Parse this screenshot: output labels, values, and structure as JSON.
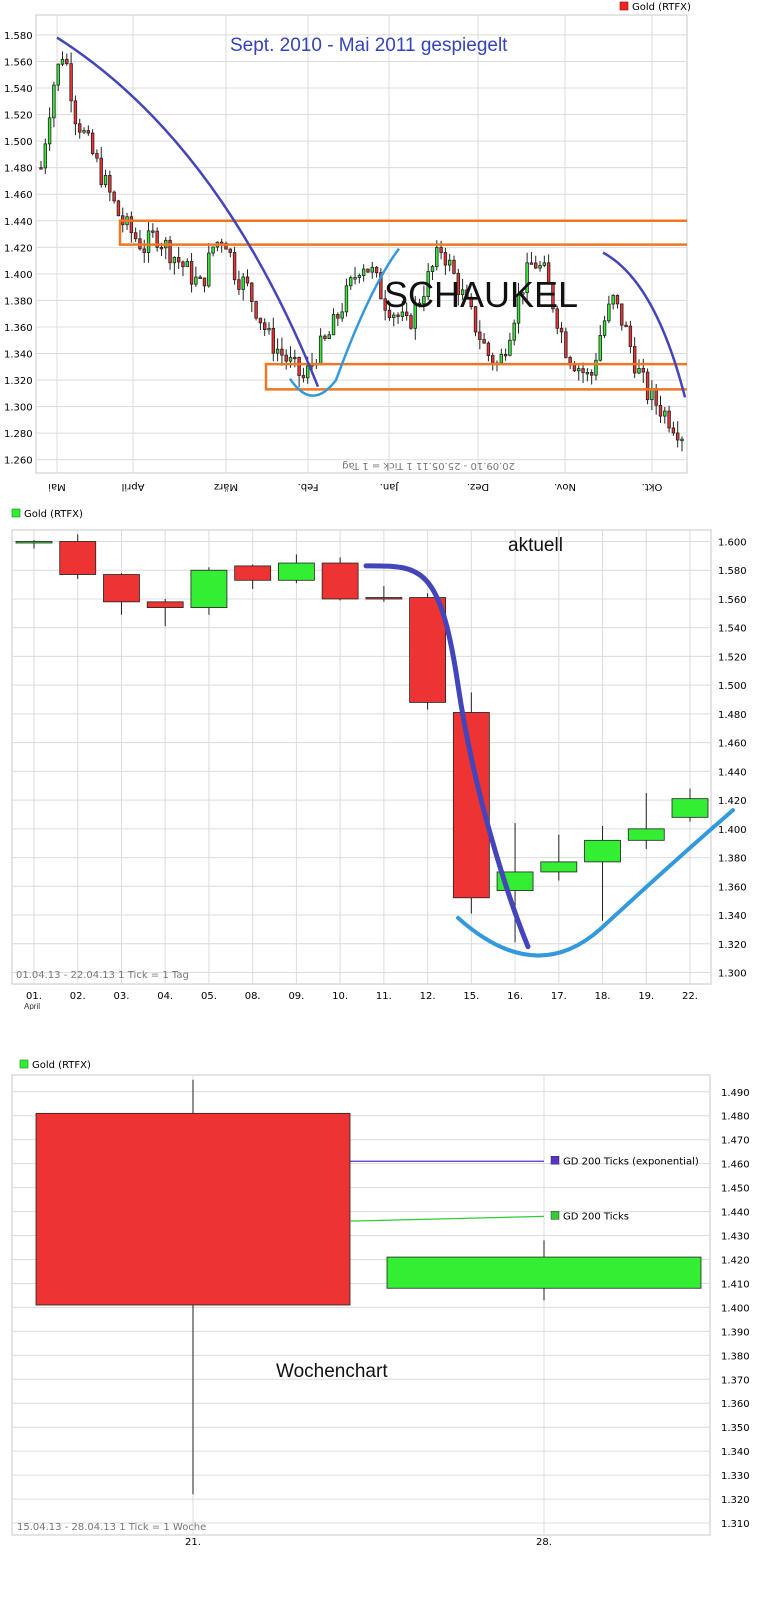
{
  "chart_data": [
    {
      "type": "candlestick",
      "title": "Sept. 2010 - Mai 2011 gespiegelt",
      "annotation": "SCHAUKEL",
      "legend": "Gold (RTFX)",
      "legend_color": "#ee2222",
      "info": "20.09.10 - 25.05.11   1 Tick = 1 Tag",
      "x_labels": [
        "Mai",
        "April",
        "März",
        "Feb.",
        "Jan.",
        "Dez.",
        "Nov.",
        "Okt."
      ],
      "x_labels_mirrored": true,
      "y_ticks": [
        1260,
        1280,
        1300,
        1320,
        1340,
        1360,
        1380,
        1400,
        1420,
        1440,
        1460,
        1480,
        1500,
        1520,
        1540,
        1560,
        1580
      ],
      "y_tick_labels": [
        "1.260",
        "1.280",
        "1.300",
        "1.320",
        "1.340",
        "1.360",
        "1.380",
        "1.400",
        "1.420",
        "1.440",
        "1.460",
        "1.480",
        "1.500",
        "1.520",
        "1.540",
        "1.560",
        "1.580"
      ],
      "ylim": [
        1250,
        1595
      ],
      "approx_close_path": [
        1480,
        1540,
        1570,
        1520,
        1500,
        1480,
        1460,
        1440,
        1430,
        1420,
        1430,
        1420,
        1410,
        1400,
        1390,
        1420,
        1430,
        1400,
        1390,
        1370,
        1350,
        1340,
        1330,
        1320,
        1340,
        1350,
        1370,
        1390,
        1410,
        1400,
        1380,
        1370,
        1360,
        1380,
        1400,
        1420,
        1400,
        1380,
        1360,
        1340,
        1330,
        1360,
        1390,
        1410,
        1400,
        1370,
        1340,
        1330,
        1320,
        1360,
        1380,
        1360,
        1330,
        1310,
        1300,
        1290,
        1280
      ],
      "resistance_zone": [
        1422,
        1440
      ],
      "support_zone": [
        1313,
        1332
      ],
      "colors": {
        "up": "#33ee33",
        "down": "#ee3333",
        "zone": "#ee7722",
        "curve_dark": "#4444bb",
        "curve_light": "#3399dd",
        "title": "#3344bb"
      }
    },
    {
      "type": "candlestick",
      "annotation": "aktuell",
      "legend": "Gold (RTFX)",
      "legend_color": "#33ee33",
      "info": "01.04.13 - 22.04.13   1 Tick = 1 Tag",
      "categories": [
        "01.",
        "02.",
        "03.",
        "04.",
        "05.",
        "08.",
        "09.",
        "10.",
        "11.",
        "12.",
        "15.",
        "16.",
        "17.",
        "18.",
        "19.",
        "22."
      ],
      "first_category_sub": "April",
      "y_ticks": [
        1300,
        1320,
        1340,
        1360,
        1380,
        1400,
        1420,
        1440,
        1460,
        1480,
        1500,
        1520,
        1540,
        1560,
        1580,
        1600
      ],
      "y_tick_labels": [
        "1.300",
        "1.320",
        "1.340",
        "1.360",
        "1.380",
        "1.400",
        "1.420",
        "1.440",
        "1.460",
        "1.480",
        "1.500",
        "1.520",
        "1.540",
        "1.560",
        "1.580",
        "1.600"
      ],
      "ylim": [
        1292,
        1608
      ],
      "ohlc": [
        {
          "o": 1599,
          "h": 1601,
          "l": 1595,
          "c": 1600
        },
        {
          "o": 1600,
          "h": 1605,
          "l": 1574,
          "c": 1577
        },
        {
          "o": 1577,
          "h": 1578,
          "l": 1549,
          "c": 1558
        },
        {
          "o": 1558,
          "h": 1560,
          "l": 1541,
          "c": 1554
        },
        {
          "o": 1554,
          "h": 1582,
          "l": 1549,
          "c": 1580
        },
        {
          "o": 1583,
          "h": 1584,
          "l": 1567,
          "c": 1573
        },
        {
          "o": 1573,
          "h": 1591,
          "l": 1571,
          "c": 1585
        },
        {
          "o": 1585,
          "h": 1589,
          "l": 1559,
          "c": 1560
        },
        {
          "o": 1561,
          "h": 1569,
          "l": 1558,
          "c": 1560
        },
        {
          "o": 1561,
          "h": 1564,
          "l": 1483,
          "c": 1488
        },
        {
          "o": 1481,
          "h": 1495,
          "l": 1341,
          "c": 1352
        },
        {
          "o": 1357,
          "h": 1404,
          "l": 1321,
          "c": 1370
        },
        {
          "o": 1370,
          "h": 1396,
          "l": 1364,
          "c": 1377
        },
        {
          "o": 1377,
          "h": 1402,
          "l": 1336,
          "c": 1392
        },
        {
          "o": 1392,
          "h": 1425,
          "l": 1386,
          "c": 1400
        },
        {
          "o": 1408,
          "h": 1428,
          "l": 1405,
          "c": 1421
        }
      ],
      "colors": {
        "up": "#33ee33",
        "down": "#ee3333",
        "curve_dark": "#4444bb",
        "curve_light": "#3399dd"
      }
    },
    {
      "type": "candlestick",
      "annotation": "Wochenchart",
      "legend": "Gold (RTFX)",
      "legend_color": "#33ee33",
      "info": "15.04.13 - 28.04.13   1 Tick = 1 Woche",
      "categories": [
        "21.",
        "28."
      ],
      "y_ticks": [
        1310,
        1320,
        1330,
        1340,
        1350,
        1360,
        1370,
        1380,
        1390,
        1400,
        1410,
        1420,
        1430,
        1440,
        1450,
        1460,
        1470,
        1480,
        1490
      ],
      "y_tick_labels": [
        "1.310",
        "1.320",
        "1.330",
        "1.340",
        "1.350",
        "1.360",
        "1.370",
        "1.380",
        "1.390",
        "1.400",
        "1.410",
        "1.420",
        "1.430",
        "1.440",
        "1.450",
        "1.460",
        "1.470",
        "1.480",
        "1.490"
      ],
      "ylim": [
        1305,
        1497
      ],
      "ohlc": [
        {
          "o": 1481,
          "h": 1495,
          "l": 1322,
          "c": 1401
        },
        {
          "o": 1408,
          "h": 1428,
          "l": 1403,
          "c": 1421
        }
      ],
      "moving_averages": [
        {
          "name": "GD 200 Ticks (exponential)",
          "color": "#5533cc",
          "values": [
            1461,
            1461
          ]
        },
        {
          "name": "GD 200 Ticks",
          "color": "#33cc33",
          "values": [
            1436,
            1438
          ]
        }
      ],
      "colors": {
        "up": "#33ee33",
        "down": "#ee3333"
      }
    }
  ]
}
